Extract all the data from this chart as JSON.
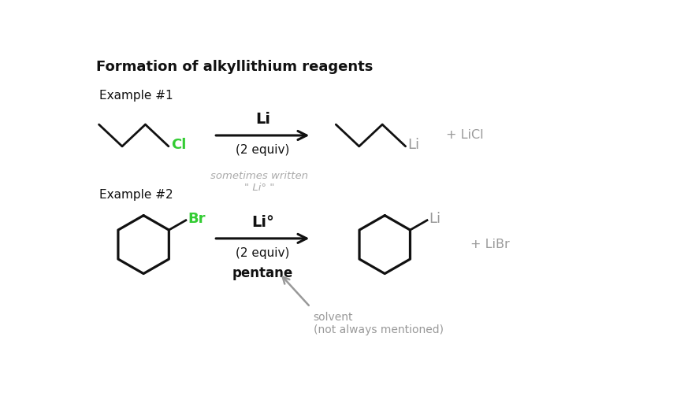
{
  "title": "Formation of alkyllithium reagents",
  "background_color": "#ffffff",
  "title_fontsize": 13,
  "example1_label": "Example #1",
  "example2_label": "Example #2",
  "arrow1_label_line1": "Li",
  "arrow1_label_line2": "(2 equiv)",
  "arrow2_label_line1": "Li°",
  "arrow2_label_line2": "(2 equiv)",
  "arrow2_label_line3": "pentane",
  "note_line1": "sometimes written",
  "note_line2": "\" Li° \"",
  "solvent_note": "solvent\n(not always mentioned)",
  "licl_text": "+ LiCl",
  "libr_text": "+ LiBr",
  "cl_color": "#33cc33",
  "br_color": "#33cc33",
  "li_color": "#999999",
  "note_color": "#aaaaaa",
  "black": "#111111",
  "gray": "#999999",
  "bond_lw": 2.0,
  "arrow_lw": 2.2
}
